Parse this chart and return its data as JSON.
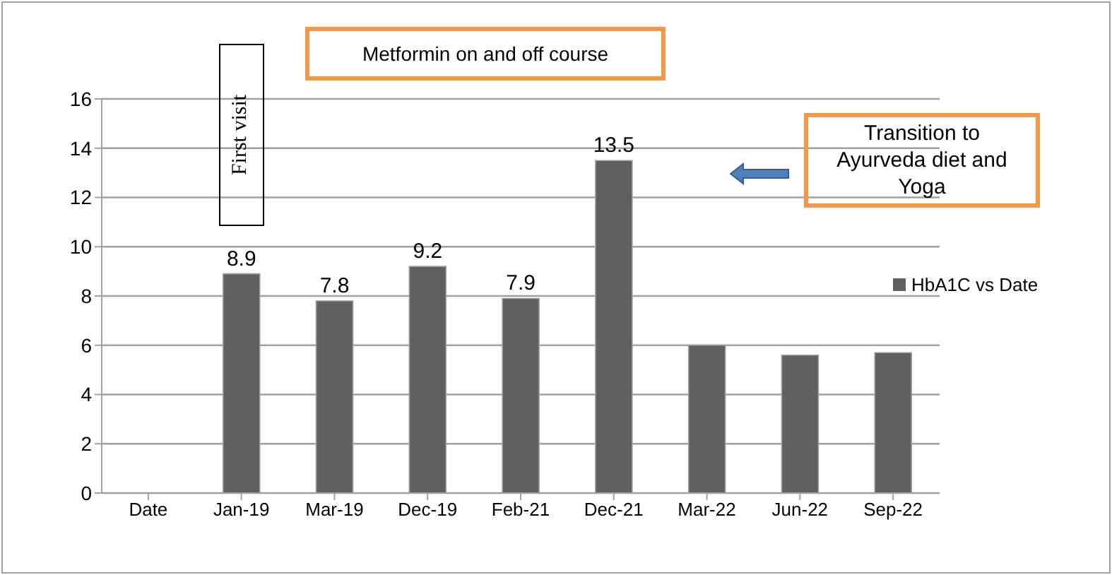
{
  "chart_data": {
    "type": "bar",
    "categories": [
      "Date",
      "Jan-19",
      "Mar-19",
      "Dec-19",
      "Feb-21",
      "Dec-21",
      "Mar-22",
      "Jun-22",
      "Sep-22"
    ],
    "series": [
      {
        "name": "HbA1C vs Date",
        "color": "#606060",
        "values": [
          null,
          8.9,
          7.8,
          9.2,
          7.9,
          13.5,
          6.0,
          5.6,
          5.7
        ]
      }
    ],
    "value_labels": [
      null,
      "8.9",
      "7.8",
      "9.2",
      "7.9",
      "13.5",
      null,
      null,
      null
    ],
    "ylim": [
      0,
      16
    ],
    "yticks": [
      0,
      2,
      4,
      6,
      8,
      10,
      12,
      14,
      16
    ],
    "grid": "y",
    "legend": "right",
    "annotations": [
      "Metformin on and off course",
      "First visit",
      "Transition to Ayurveda diet and Yoga"
    ]
  }
}
